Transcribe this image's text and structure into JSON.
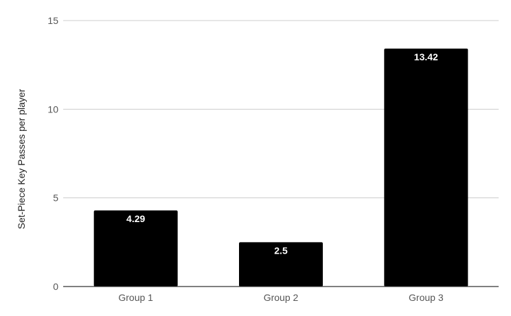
{
  "chart_data": {
    "type": "bar",
    "categories": [
      "Group 1",
      "Group 2",
      "Group 3"
    ],
    "values": [
      4.29,
      2.5,
      13.42
    ],
    "data_labels": [
      "4.29",
      "2.5",
      "13.42"
    ],
    "title": "",
    "xlabel": "",
    "ylabel": "Set-Piece Key Passes per player",
    "ylim": [
      0,
      15
    ],
    "yticks": [
      "0",
      "5",
      "10",
      "15"
    ],
    "ytick_values": [
      0,
      5,
      10,
      15
    ],
    "grid": true,
    "legend": "none",
    "colors": {
      "bar": "#000000",
      "grid": "#cccccc",
      "axis": "#333333",
      "data_label": "#ffffff"
    }
  }
}
